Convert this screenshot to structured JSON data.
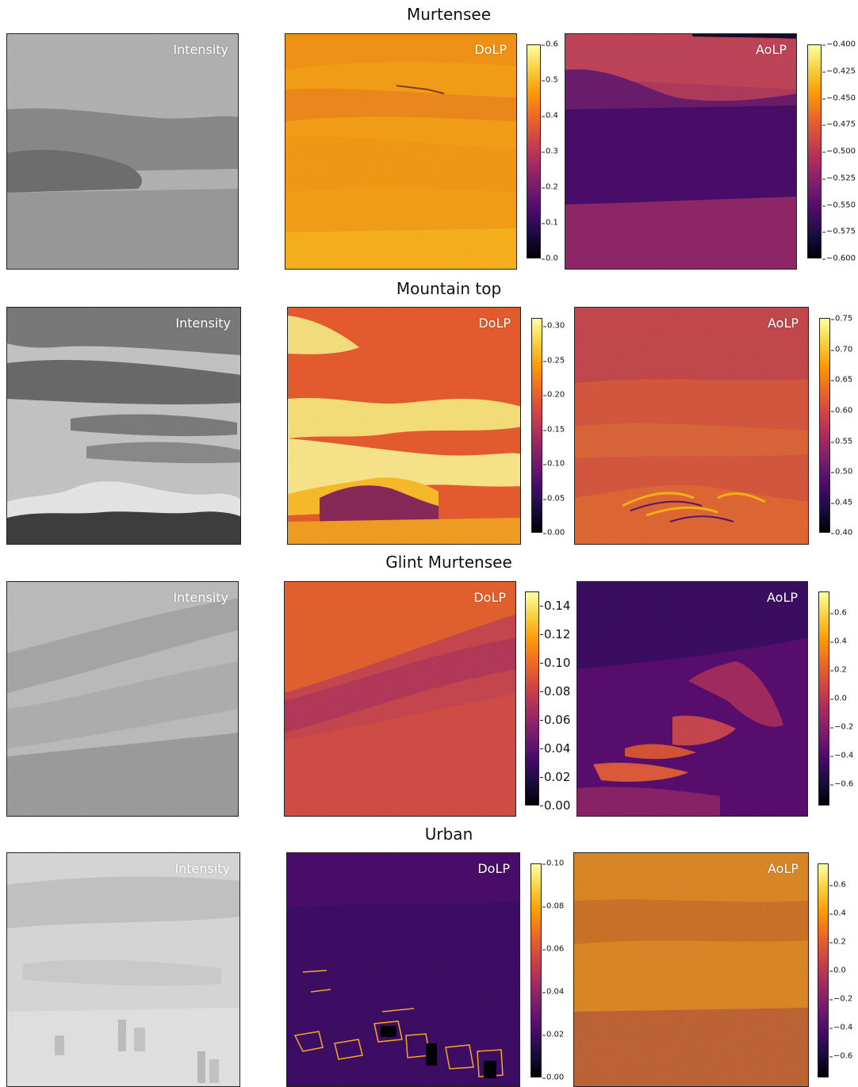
{
  "panel_labels": {
    "intensity": "Intensity",
    "dolp": "DoLP",
    "aolp": "AoLP"
  },
  "colors": {
    "inferno": [
      "#000004",
      "#1b0c41",
      "#4a0c6b",
      "#781c6d",
      "#a52c60",
      "#cf4446",
      "#ed6925",
      "#fb9b06",
      "#f7d13d",
      "#fcffa4"
    ]
  },
  "rows": [
    {
      "id": "murtensee",
      "title": "Murtensee",
      "intensity_scene": "Grey sky over lake with dark land strip",
      "dolp_ticks": [
        "0.0",
        "0.1",
        "0.2",
        "0.3",
        "0.4",
        "0.5",
        "0.6"
      ],
      "aolp_ticks": [
        "−0.600",
        "−0.575",
        "−0.550",
        "−0.525",
        "−0.500",
        "−0.475",
        "−0.450",
        "−0.425",
        "−0.400"
      ]
    },
    {
      "id": "mountain-top",
      "title": "Mountain top",
      "intensity_scene": "Clouds over snowy mountain range",
      "dolp_ticks": [
        "0.00",
        "0.05",
        "0.10",
        "0.15",
        "0.20",
        "0.25",
        "0.30"
      ],
      "aolp_ticks": [
        "0.40",
        "0.45",
        "0.50",
        "0.55",
        "0.60",
        "0.65",
        "0.70",
        "0.75"
      ]
    },
    {
      "id": "glint-murtensee",
      "title": "Glint Murtensee",
      "intensity_scene": "Lake surface with glint streaks",
      "dolp_ticks": [
        "0.00",
        "0.02",
        "0.04",
        "0.06",
        "0.08",
        "0.10",
        "0.12",
        "0.14"
      ],
      "aolp_ticks": [
        "−0.6",
        "−0.4",
        "−0.2",
        "0.0",
        "0.2",
        "0.4",
        "0.6"
      ]
    },
    {
      "id": "urban",
      "title": "Urban",
      "intensity_scene": "Hazy city with buildings at bottom",
      "dolp_ticks": [
        "0.00",
        "0.02",
        "0.04",
        "0.06",
        "0.08",
        "0.10"
      ],
      "aolp_ticks": [
        "−0.6",
        "−0.4",
        "−0.2",
        "0.0",
        "0.2",
        "0.4",
        "0.6"
      ]
    }
  ]
}
